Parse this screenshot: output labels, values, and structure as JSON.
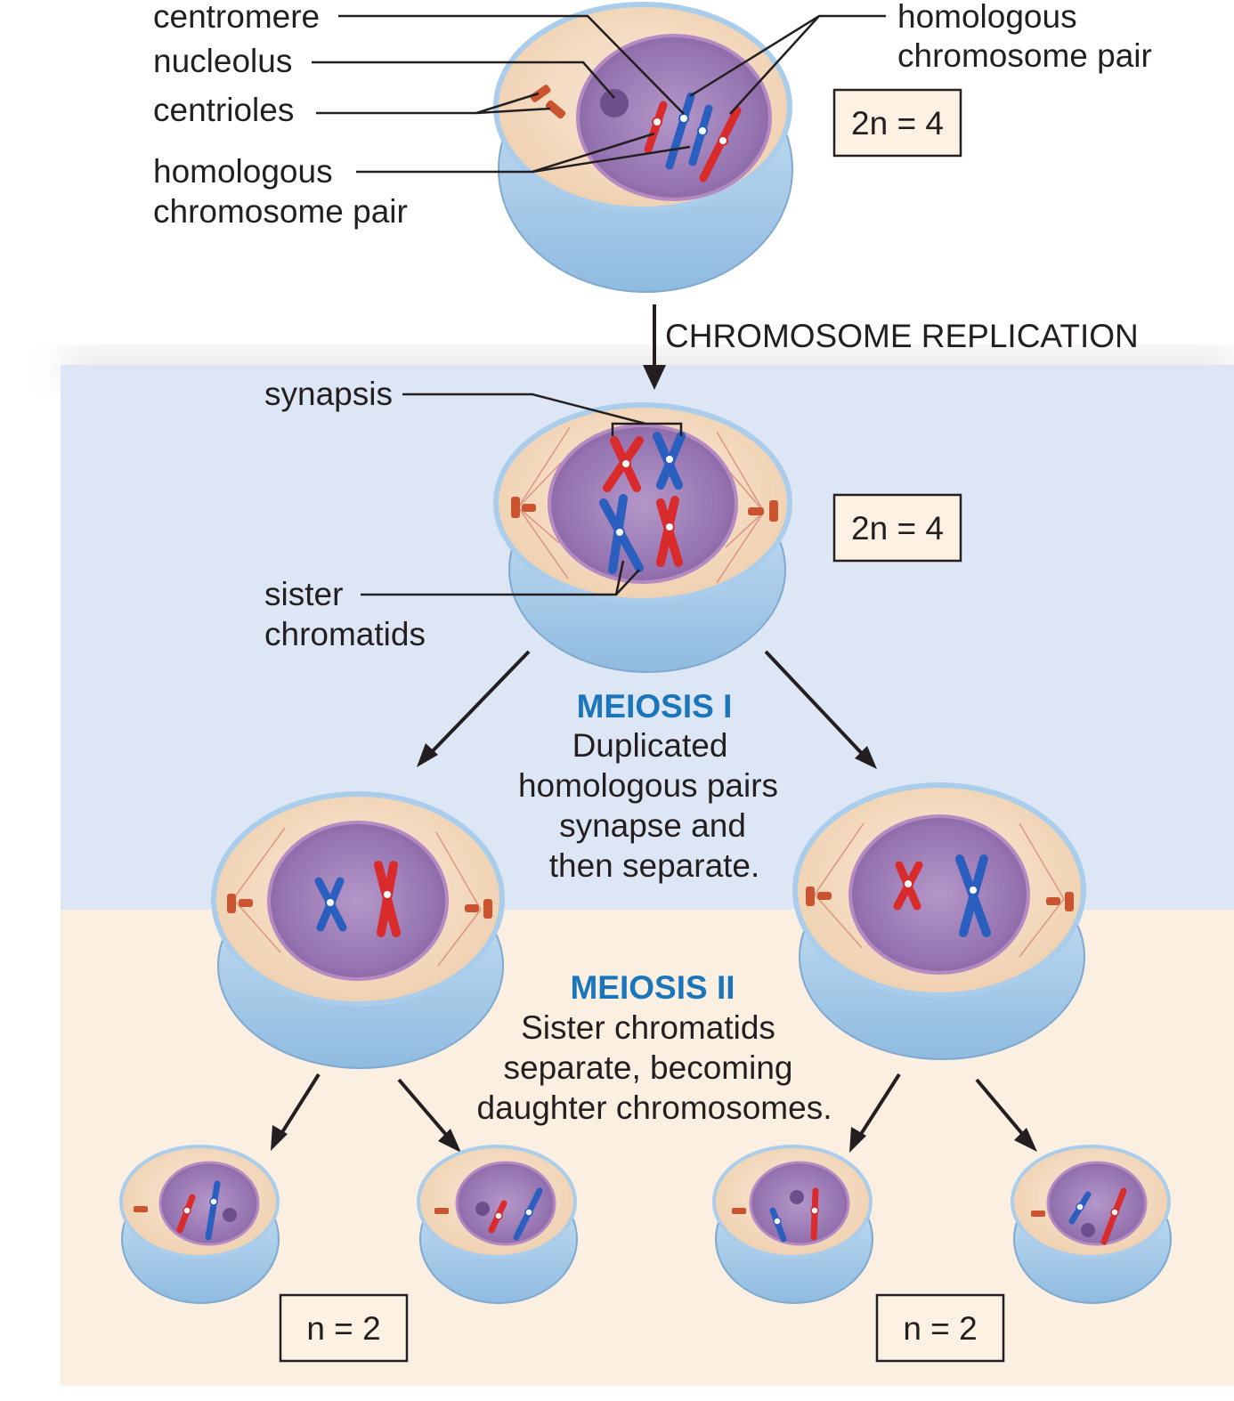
{
  "labels": {
    "centromere": "centromere",
    "nucleolus": "nucleolus",
    "centrioles": "centrioles",
    "homologous_left_1": "homologous",
    "homologous_left_2": "chromosome pair",
    "homologous_right_1": "homologous",
    "homologous_right_2": "chromosome pair",
    "synapsis": "synapsis",
    "sister_1": "sister",
    "sister_2": "chromatids"
  },
  "process": {
    "replication": "CHROMOSOME REPLICATION"
  },
  "meiosis1": {
    "title": "MEIOSIS I",
    "lines": [
      "Duplicated",
      "homologous pairs",
      "synapse and",
      "then separate."
    ]
  },
  "meiosis2": {
    "title": "MEIOSIS II",
    "lines": [
      "Sister chromatids",
      "separate, becoming",
      "daughter chromosomes."
    ]
  },
  "ploidy": {
    "top": "2n = 4",
    "middle": "2n = 4",
    "bottom_left": "n = 2",
    "bottom_right": "n = 2"
  },
  "colors": {
    "meiosis1_band": "#dde6f5",
    "meiosis2_band": "#fbefe2",
    "heading_blue": "#1a75bb",
    "chromosome_red": "#d92b2b",
    "chromosome_blue": "#2b5fbf",
    "nucleus_purple": "#9a77b5",
    "cytoplasm_cream": "#f4dcc4",
    "membrane_blue": "#a9cdea"
  }
}
